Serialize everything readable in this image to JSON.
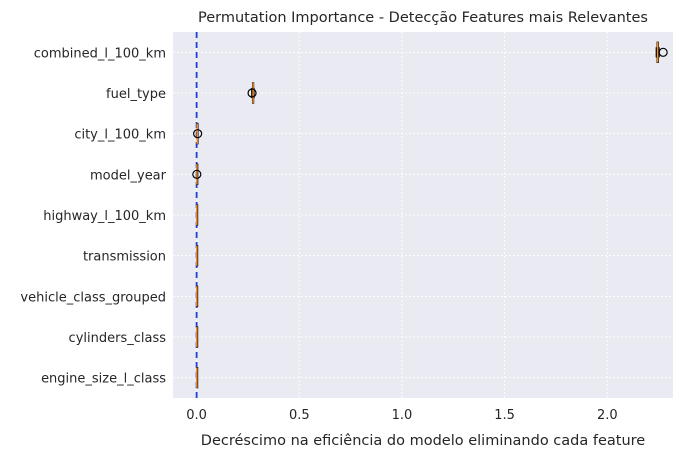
{
  "chart_data": {
    "type": "boxplot",
    "orientation": "horizontal",
    "title": "Permutation Importance - Detecção Features mais Relevantes",
    "xlabel": "Decréscimo na eficiência do modelo eliminando cada feature",
    "ylabel": "",
    "xlim": [
      -0.115,
      2.32
    ],
    "xticks": [
      0.0,
      0.5,
      1.0,
      1.5,
      2.0
    ],
    "xtick_labels": [
      "0.0",
      "0.5",
      "1.0",
      "1.5",
      "2.0"
    ],
    "grid": true,
    "reference_line": {
      "x": 0.0,
      "style": "dashed",
      "color": "#1f3fd6"
    },
    "colors": {
      "background": "#eaeaf2",
      "grid": "#ffffff",
      "box": "#000000",
      "median": "#f28e2b",
      "flier": "#000000"
    },
    "features": [
      {
        "name": "combined_l_100_km",
        "whislo": 2.238,
        "q1": 2.242,
        "med": 2.245,
        "q3": 2.249,
        "whishi": 2.253,
        "fliers": [
          2.272
        ]
      },
      {
        "name": "fuel_type",
        "whislo": 0.268,
        "q1": 0.272,
        "med": 0.275,
        "q3": 0.278,
        "whishi": 0.28,
        "fliers": [
          0.27
        ]
      },
      {
        "name": "city_l_100_km",
        "whislo": 0.001,
        "q1": 0.002,
        "med": 0.003,
        "q3": 0.004,
        "whishi": 0.005,
        "fliers": [
          0.005
        ]
      },
      {
        "name": "model_year",
        "whislo": 0.0,
        "q1": 0.001,
        "med": 0.0015,
        "q3": 0.002,
        "whishi": 0.003,
        "fliers": [
          0.001
        ]
      },
      {
        "name": "highway_l_100_km",
        "whislo": 0.0,
        "q1": 0.0005,
        "med": 0.001,
        "q3": 0.0015,
        "whishi": 0.002,
        "fliers": []
      },
      {
        "name": "transmission",
        "whislo": 0.0,
        "q1": 0.0005,
        "med": 0.001,
        "q3": 0.0015,
        "whishi": 0.002,
        "fliers": []
      },
      {
        "name": "vehicle_class_grouped",
        "whislo": 0.0,
        "q1": 0.0005,
        "med": 0.001,
        "q3": 0.0015,
        "whishi": 0.002,
        "fliers": []
      },
      {
        "name": "cylinders_class",
        "whislo": 0.0,
        "q1": 0.0005,
        "med": 0.001,
        "q3": 0.0015,
        "whishi": 0.002,
        "fliers": []
      },
      {
        "name": "engine_size_l_class",
        "whislo": 0.0,
        "q1": 0.0005,
        "med": 0.001,
        "q3": 0.0015,
        "whishi": 0.002,
        "fliers": []
      }
    ]
  }
}
